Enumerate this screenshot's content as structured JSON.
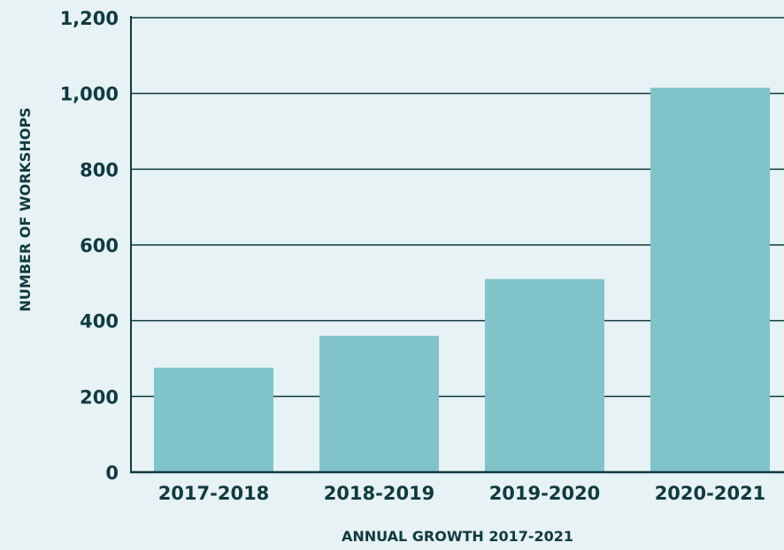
{
  "chart_data": {
    "type": "bar",
    "title": "",
    "xlabel": "ANNUAL GROWTH 2017-2021",
    "ylabel": "NUMBER OF WORKSHOPS",
    "categories": [
      "2017-2018",
      "2018-2019",
      "2019-2020",
      "2020-2021"
    ],
    "values": [
      276,
      360,
      510,
      1015
    ],
    "ylim": [
      0,
      1200
    ],
    "yticks": [
      0,
      200,
      400,
      600,
      800,
      1000,
      1200
    ],
    "ytick_labels": [
      "0",
      "200",
      "400",
      "600",
      "800",
      "1,000",
      "1,200"
    ],
    "grid": true,
    "legend": "none"
  },
  "colors": {
    "background": "#e7f2f4",
    "bar": "#80c4ca",
    "axis": "#0f3a40",
    "text": "#0f3a40"
  }
}
